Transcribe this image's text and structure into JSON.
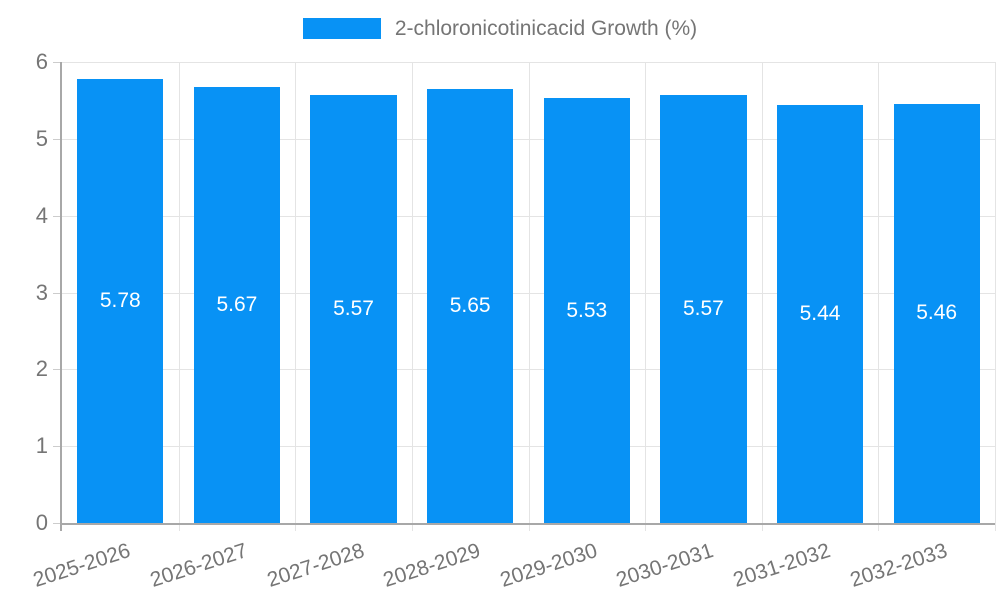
{
  "legend": {
    "label": "2-chloronicotinicacid Growth (%)"
  },
  "colors": {
    "bar": "#0892f5",
    "axis_text": "#757575",
    "grid_line": "#e4e4e4",
    "axis_line": "#a8a8a8",
    "value_label": "#ffffff",
    "background": "#ffffff"
  },
  "chart_data": {
    "type": "bar",
    "title": "",
    "xlabel": "",
    "ylabel": "",
    "categories": [
      "2025-2026",
      "2026-2027",
      "2027-2028",
      "2028-2029",
      "2029-2030",
      "2030-2031",
      "2031-2032",
      "2032-2033"
    ],
    "series": [
      {
        "name": "2-chloronicotinicacid Growth (%)",
        "values": [
          5.78,
          5.67,
          5.57,
          5.65,
          5.53,
          5.57,
          5.44,
          5.46
        ]
      }
    ],
    "value_labels": [
      "5.78",
      "5.67",
      "5.57",
      "5.65",
      "5.53",
      "5.57",
      "5.44",
      "5.46"
    ],
    "ylim": [
      0,
      6
    ],
    "yticks": [
      0,
      1,
      2,
      3,
      4,
      5,
      6
    ],
    "grid": true,
    "legend_position": "top",
    "value_label_position": "inside-center",
    "xtick_rotation_deg": -18
  }
}
